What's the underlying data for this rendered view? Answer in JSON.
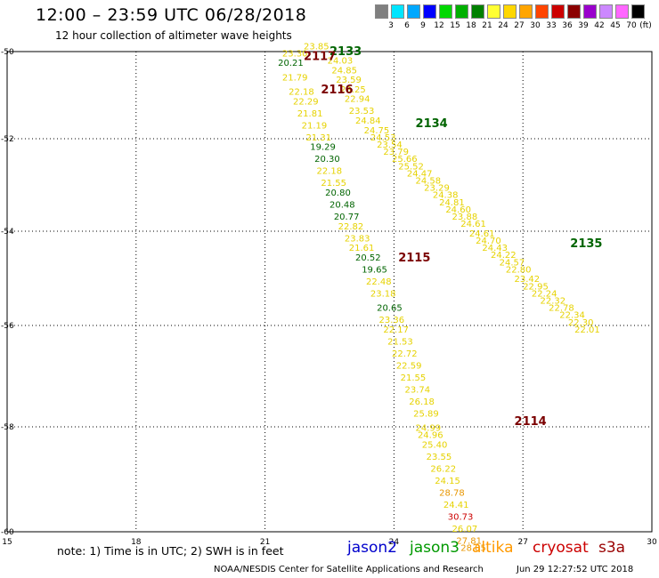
{
  "header": {
    "title": "12:00 – 23:59 UTC 06/28/2018",
    "subtitle": "12 hour collection of altimeter wave heights"
  },
  "legend": {
    "unit": "(ft)",
    "bins": [
      {
        "label": "",
        "color": "#7f7f7f"
      },
      {
        "label": "3",
        "color": "#00e5ff"
      },
      {
        "label": "6",
        "color": "#00a8ff"
      },
      {
        "label": "9",
        "color": "#0000ff"
      },
      {
        "label": "12",
        "color": "#00d800"
      },
      {
        "label": "15",
        "color": "#00b000"
      },
      {
        "label": "18",
        "color": "#008000"
      },
      {
        "label": "21",
        "color": "#ffff33"
      },
      {
        "label": "24",
        "color": "#ffd700"
      },
      {
        "label": "27",
        "color": "#ffa500"
      },
      {
        "label": "30",
        "color": "#ff4500"
      },
      {
        "label": "33",
        "color": "#cc0000"
      },
      {
        "label": "36",
        "color": "#8b0000"
      },
      {
        "label": "39",
        "color": "#9900cc"
      },
      {
        "label": "42",
        "color": "#cc88ff"
      },
      {
        "label": "45",
        "color": "#ff66ff"
      },
      {
        "label": "70",
        "color": "#000000"
      }
    ]
  },
  "colors": {
    "green": "#006400",
    "yellow": "#e6d200",
    "orange": "#e89600",
    "red": "#cc0000",
    "darkred": "#7a0000"
  },
  "map": {
    "lon_range": [
      15,
      30
    ],
    "lat_range": [
      -60,
      -50
    ],
    "lon_ticks": [
      "15",
      "18",
      "21",
      "24",
      "27",
      "30"
    ],
    "lat_ticks": [
      "-50",
      "-52",
      "-54",
      "-56",
      "-58",
      "-60"
    ],
    "passes": [
      {
        "label": "2133",
        "lon": 22.5,
        "lat": -50.0,
        "color": "green"
      },
      {
        "label": "2117",
        "lon": 21.9,
        "lat": -50.1,
        "color": "darkred"
      },
      {
        "label": "2116",
        "lon": 22.3,
        "lat": -50.8,
        "color": "darkred"
      },
      {
        "label": "2134",
        "lon": 24.5,
        "lat": -51.5,
        "color": "green"
      },
      {
        "label": "2135",
        "lon": 28.1,
        "lat": -54.0,
        "color": "green"
      },
      {
        "label": "2115",
        "lon": 24.1,
        "lat": -54.3,
        "color": "darkred"
      },
      {
        "label": "2114",
        "lon": 26.8,
        "lat": -57.7,
        "color": "darkred"
      }
    ],
    "obs": [
      {
        "v": "23.85",
        "lon": 21.9,
        "lat": -49.95,
        "c": "yellow"
      },
      {
        "v": "23.30",
        "lon": 21.4,
        "lat": -50.1,
        "c": "yellow"
      },
      {
        "v": "24.03",
        "lon": 22.45,
        "lat": -50.25,
        "c": "yellow"
      },
      {
        "v": "24.85",
        "lon": 22.55,
        "lat": -50.45,
        "c": "yellow"
      },
      {
        "v": "20.21",
        "lon": 21.3,
        "lat": -50.3,
        "c": "green"
      },
      {
        "v": "21.79",
        "lon": 21.4,
        "lat": -50.6,
        "c": "yellow"
      },
      {
        "v": "22.18",
        "lon": 21.55,
        "lat": -50.9,
        "c": "yellow"
      },
      {
        "v": "22.29",
        "lon": 21.65,
        "lat": -51.1,
        "c": "yellow"
      },
      {
        "v": "21.81",
        "lon": 21.75,
        "lat": -51.35,
        "c": "yellow"
      },
      {
        "v": "21.19",
        "lon": 21.85,
        "lat": -51.6,
        "c": "yellow"
      },
      {
        "v": "21.31",
        "lon": 21.95,
        "lat": -51.85,
        "c": "yellow"
      },
      {
        "v": "19.29",
        "lon": 22.05,
        "lat": -52.05,
        "c": "green"
      },
      {
        "v": "20.30",
        "lon": 22.15,
        "lat": -52.3,
        "c": "green"
      },
      {
        "v": "22.18",
        "lon": 22.2,
        "lat": -52.55,
        "c": "yellow"
      },
      {
        "v": "21.55",
        "lon": 22.3,
        "lat": -52.8,
        "c": "yellow"
      },
      {
        "v": "20.80",
        "lon": 22.4,
        "lat": -53.0,
        "c": "green"
      },
      {
        "v": "20.48",
        "lon": 22.5,
        "lat": -53.25,
        "c": "green"
      },
      {
        "v": "20.77",
        "lon": 22.6,
        "lat": -53.5,
        "c": "green"
      },
      {
        "v": "22.82",
        "lon": 22.7,
        "lat": -53.7,
        "c": "yellow"
      },
      {
        "v": "23.83",
        "lon": 22.85,
        "lat": -53.95,
        "c": "yellow"
      },
      {
        "v": "21.61",
        "lon": 22.95,
        "lat": -54.15,
        "c": "yellow"
      },
      {
        "v": "20.52",
        "lon": 23.1,
        "lat": -54.35,
        "c": "green"
      },
      {
        "v": "19.65",
        "lon": 23.25,
        "lat": -54.6,
        "c": "green"
      },
      {
        "v": "22.48",
        "lon": 23.35,
        "lat": -54.85,
        "c": "yellow"
      },
      {
        "v": "23.18",
        "lon": 23.45,
        "lat": -55.1,
        "c": "yellow"
      },
      {
        "v": "20.65",
        "lon": 23.6,
        "lat": -55.4,
        "c": "green"
      },
      {
        "v": "23.36",
        "lon": 23.65,
        "lat": -55.65,
        "c": "yellow"
      },
      {
        "v": "22.17",
        "lon": 23.75,
        "lat": -55.85,
        "c": "yellow"
      },
      {
        "v": "21.53",
        "lon": 23.85,
        "lat": -56.1,
        "c": "yellow"
      },
      {
        "v": "22.72",
        "lon": 23.95,
        "lat": -56.35,
        "c": "yellow"
      },
      {
        "v": "22.59",
        "lon": 24.05,
        "lat": -56.6,
        "c": "yellow"
      },
      {
        "v": "21.55",
        "lon": 24.15,
        "lat": -56.85,
        "c": "yellow"
      },
      {
        "v": "23.74",
        "lon": 24.25,
        "lat": -57.1,
        "c": "yellow"
      },
      {
        "v": "26.18",
        "lon": 24.35,
        "lat": -57.35,
        "c": "yellow"
      },
      {
        "v": "25.89",
        "lon": 24.45,
        "lat": -57.6,
        "c": "yellow"
      },
      {
        "v": "24.99",
        "lon": 24.5,
        "lat": -57.9,
        "c": "yellow"
      },
      {
        "v": "24.96",
        "lon": 24.55,
        "lat": -58.05,
        "c": "yellow"
      },
      {
        "v": "25.40",
        "lon": 24.65,
        "lat": -58.25,
        "c": "yellow"
      },
      {
        "v": "23.55",
        "lon": 24.75,
        "lat": -58.5,
        "c": "yellow"
      },
      {
        "v": "26.22",
        "lon": 24.85,
        "lat": -58.75,
        "c": "yellow"
      },
      {
        "v": "24.15",
        "lon": 24.95,
        "lat": -59.0,
        "c": "yellow"
      },
      {
        "v": "28.78",
        "lon": 25.05,
        "lat": -59.25,
        "c": "orange"
      },
      {
        "v": "24.41",
        "lon": 25.15,
        "lat": -59.5,
        "c": "yellow"
      },
      {
        "v": "30.73",
        "lon": 25.25,
        "lat": -59.75,
        "c": "red"
      },
      {
        "v": "26.07",
        "lon": 25.35,
        "lat": -60.0,
        "c": "yellow"
      },
      {
        "v": "27.81",
        "lon": 25.45,
        "lat": -60.25,
        "c": "orange"
      },
      {
        "v": "28.85",
        "lon": 25.55,
        "lat": -60.4,
        "c": "orange"
      },
      {
        "v": "23.59",
        "lon": 22.65,
        "lat": -50.65,
        "c": "yellow"
      },
      {
        "v": "23.25",
        "lon": 22.75,
        "lat": -50.85,
        "c": "yellow"
      },
      {
        "v": "22.94",
        "lon": 22.85,
        "lat": -51.05,
        "c": "yellow"
      },
      {
        "v": "23.53",
        "lon": 22.95,
        "lat": -51.3,
        "c": "yellow"
      },
      {
        "v": "24.84",
        "lon": 23.1,
        "lat": -51.5,
        "c": "yellow"
      },
      {
        "v": "24.75",
        "lon": 23.3,
        "lat": -51.7,
        "c": "yellow"
      },
      {
        "v": "24.53",
        "lon": 23.45,
        "lat": -51.85,
        "c": "yellow"
      },
      {
        "v": "23.54",
        "lon": 23.6,
        "lat": -52.0,
        "c": "yellow"
      },
      {
        "v": "23.79",
        "lon": 23.75,
        "lat": -52.15,
        "c": "yellow"
      },
      {
        "v": "25.66",
        "lon": 23.95,
        "lat": -52.3,
        "c": "yellow"
      },
      {
        "v": "25.52",
        "lon": 24.1,
        "lat": -52.45,
        "c": "yellow"
      },
      {
        "v": "24.47",
        "lon": 24.3,
        "lat": -52.6,
        "c": "yellow"
      },
      {
        "v": "24.58",
        "lon": 24.5,
        "lat": -52.75,
        "c": "yellow"
      },
      {
        "v": "23.29",
        "lon": 24.7,
        "lat": -52.9,
        "c": "yellow"
      },
      {
        "v": "24.38",
        "lon": 24.9,
        "lat": -53.05,
        "c": "yellow"
      },
      {
        "v": "24.81",
        "lon": 25.05,
        "lat": -53.2,
        "c": "yellow"
      },
      {
        "v": "24.60",
        "lon": 25.2,
        "lat": -53.35,
        "c": "yellow"
      },
      {
        "v": "23.88",
        "lon": 25.35,
        "lat": -53.5,
        "c": "yellow"
      },
      {
        "v": "24.61",
        "lon": 25.55,
        "lat": -53.65,
        "c": "yellow"
      },
      {
        "v": "24.61",
        "lon": 25.75,
        "lat": -53.85,
        "c": "yellow"
      },
      {
        "v": "24.70",
        "lon": 25.9,
        "lat": -54.0,
        "c": "yellow"
      },
      {
        "v": "24.43",
        "lon": 26.05,
        "lat": -54.15,
        "c": "yellow"
      },
      {
        "v": "24.22",
        "lon": 26.25,
        "lat": -54.3,
        "c": "yellow"
      },
      {
        "v": "24.57",
        "lon": 26.45,
        "lat": -54.45,
        "c": "yellow"
      },
      {
        "v": "22.80",
        "lon": 26.6,
        "lat": -54.6,
        "c": "yellow"
      },
      {
        "v": "23.42",
        "lon": 26.8,
        "lat": -54.8,
        "c": "yellow"
      },
      {
        "v": "22.95",
        "lon": 27.0,
        "lat": -54.95,
        "c": "yellow"
      },
      {
        "v": "22.24",
        "lon": 27.2,
        "lat": -55.1,
        "c": "yellow"
      },
      {
        "v": "22.32",
        "lon": 27.4,
        "lat": -55.25,
        "c": "yellow"
      },
      {
        "v": "22.78",
        "lon": 27.6,
        "lat": -55.4,
        "c": "yellow"
      },
      {
        "v": "22.34",
        "lon": 27.85,
        "lat": -55.55,
        "c": "yellow"
      },
      {
        "v": "22.30",
        "lon": 28.05,
        "lat": -55.7,
        "c": "yellow"
      },
      {
        "v": "22.01",
        "lon": 28.2,
        "lat": -55.85,
        "c": "yellow"
      }
    ]
  },
  "note": "note:  1) Time is in UTC;  2) SWH is in feet",
  "satellites": [
    {
      "name": "jason2",
      "color": "#0000cc"
    },
    {
      "name": "jason3",
      "color": "#009900"
    },
    {
      "name": "altika",
      "color": "#ff9900"
    },
    {
      "name": "cryosat",
      "color": "#cc0000"
    },
    {
      "name": "s3a",
      "color": "#990000"
    }
  ],
  "credit": "NOAA/NESDIS Center for Satellite Applications and Research",
  "timestamp": "Jun 29 12:27:52 UTC 2018"
}
